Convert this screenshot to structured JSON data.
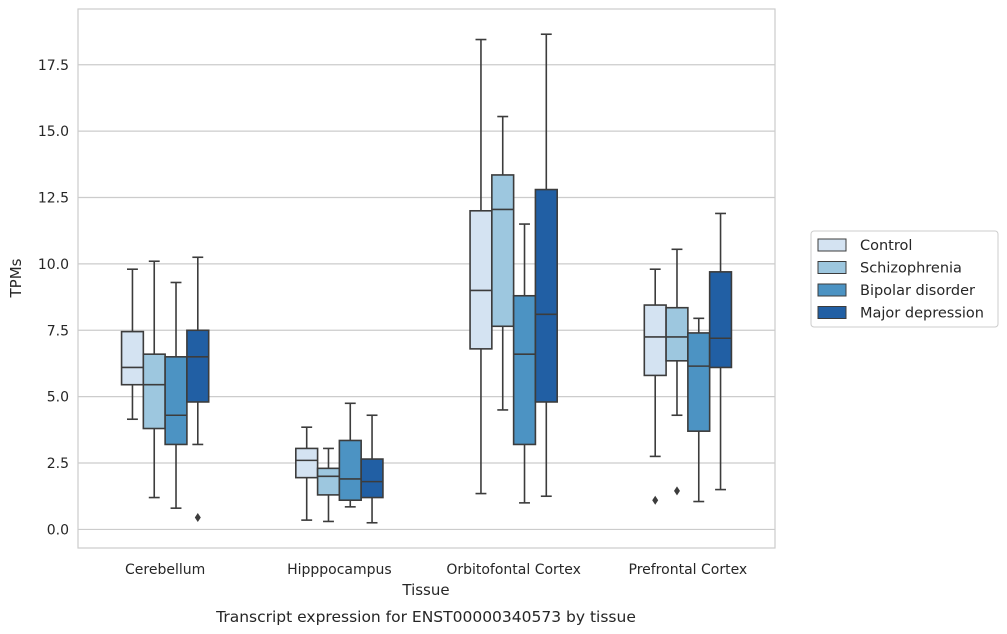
{
  "colors": {
    "Control": "#d4e3f2",
    "Schizophrenia": "#9dc7df",
    "Bipolar disorder": "#4c93c3",
    "Major depression": "#215fa4",
    "grid": "#cccccc",
    "box_edge": "#3c3c3c"
  },
  "chart_data": {
    "type": "box",
    "xlabel": "Tissue",
    "ylabel": "TPMs",
    "caption": "Transcript expression for ENST00000340573 by tissue",
    "ylim": [
      -0.7,
      19.6
    ],
    "yticks": [
      0.0,
      2.5,
      5.0,
      7.5,
      10.0,
      12.5,
      15.0,
      17.5
    ],
    "ytick_labels": [
      "0.0",
      "2.5",
      "5.0",
      "7.5",
      "10.0",
      "12.5",
      "15.0",
      "17.5"
    ],
    "categories": [
      "Cerebellum",
      "Hipppocampus",
      "Orbitofontal Cortex",
      "Prefrontal Cortex"
    ],
    "grid": "horizontal",
    "legend_position": "right",
    "series": [
      {
        "name": "Control",
        "boxes": [
          {
            "whislo": 4.15,
            "q1": 5.45,
            "med": 6.1,
            "q3": 7.45,
            "whishi": 9.8,
            "fliers": []
          },
          {
            "whislo": 0.35,
            "q1": 1.95,
            "med": 2.6,
            "q3": 3.05,
            "whishi": 3.85,
            "fliers": []
          },
          {
            "whislo": 1.35,
            "q1": 6.8,
            "med": 9.0,
            "q3": 12.0,
            "whishi": 18.45,
            "fliers": []
          },
          {
            "whislo": 2.75,
            "q1": 5.8,
            "med": 7.25,
            "q3": 8.45,
            "whishi": 9.8,
            "fliers": [
              1.1
            ]
          }
        ]
      },
      {
        "name": "Schizophrenia",
        "boxes": [
          {
            "whislo": 1.2,
            "q1": 3.8,
            "med": 5.45,
            "q3": 6.6,
            "whishi": 10.1,
            "fliers": []
          },
          {
            "whislo": 0.3,
            "q1": 1.3,
            "med": 2.0,
            "q3": 2.3,
            "whishi": 3.05,
            "fliers": []
          },
          {
            "whislo": 4.5,
            "q1": 7.65,
            "med": 12.05,
            "q3": 13.35,
            "whishi": 15.55,
            "fliers": []
          },
          {
            "whislo": 4.3,
            "q1": 6.35,
            "med": 7.25,
            "q3": 8.35,
            "whishi": 10.55,
            "fliers": [
              1.45
            ]
          }
        ]
      },
      {
        "name": "Bipolar disorder",
        "boxes": [
          {
            "whislo": 0.8,
            "q1": 3.2,
            "med": 4.3,
            "q3": 6.5,
            "whishi": 9.3,
            "fliers": []
          },
          {
            "whislo": 0.85,
            "q1": 1.1,
            "med": 1.9,
            "q3": 3.35,
            "whishi": 4.75,
            "fliers": []
          },
          {
            "whislo": 1.0,
            "q1": 3.2,
            "med": 6.6,
            "q3": 8.8,
            "whishi": 11.5,
            "fliers": []
          },
          {
            "whislo": 1.05,
            "q1": 3.7,
            "med": 6.15,
            "q3": 7.4,
            "whishi": 7.95,
            "fliers": []
          }
        ]
      },
      {
        "name": "Major depression",
        "boxes": [
          {
            "whislo": 3.2,
            "q1": 4.8,
            "med": 6.5,
            "q3": 7.5,
            "whishi": 10.25,
            "fliers": [
              0.45
            ]
          },
          {
            "whislo": 0.25,
            "q1": 1.2,
            "med": 1.8,
            "q3": 2.65,
            "whishi": 4.3,
            "fliers": []
          },
          {
            "whislo": 1.25,
            "q1": 4.8,
            "med": 8.1,
            "q3": 12.8,
            "whishi": 18.65,
            "fliers": []
          },
          {
            "whislo": 1.5,
            "q1": 6.1,
            "med": 7.2,
            "q3": 9.7,
            "whishi": 11.9,
            "fliers": []
          }
        ]
      }
    ]
  }
}
